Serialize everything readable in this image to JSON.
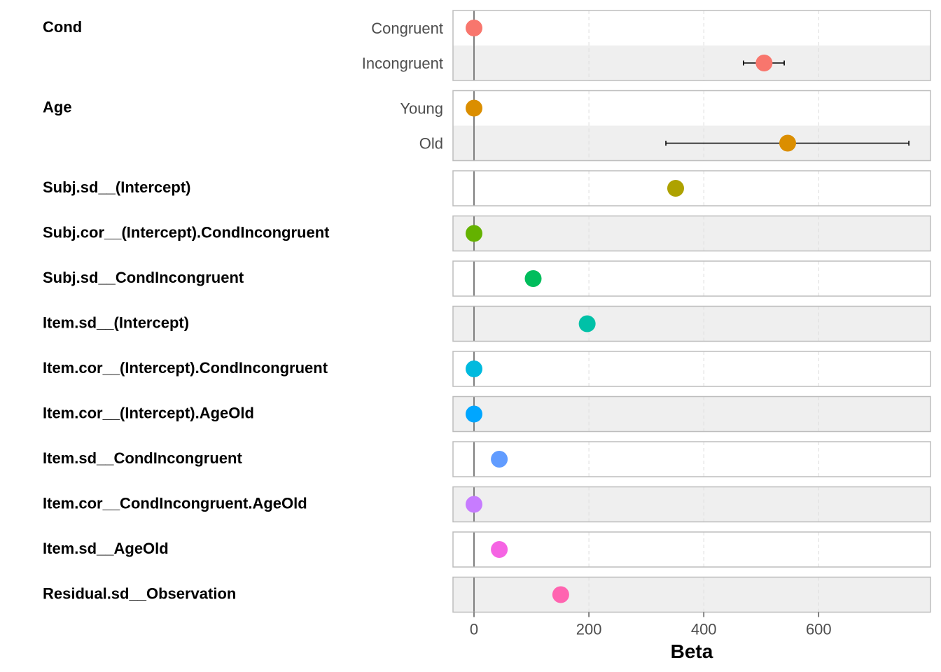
{
  "chart_data": {
    "type": "scatter",
    "title": "",
    "xlabel": "Beta",
    "ylabel": "",
    "xlim": [
      -37,
      790
    ],
    "x_ticks": [
      0,
      200,
      400,
      600
    ],
    "x_tick_labels": [
      "0",
      "200",
      "400",
      "600"
    ],
    "grid": {
      "major_x": true,
      "minor_x": false,
      "style": "dashed"
    },
    "zero_line": true,
    "legend": "none",
    "facets": [
      {
        "name": "Cond",
        "levels": [
          {
            "label": "Congruent",
            "value": 0,
            "color": "#F8766D"
          },
          {
            "label": "Incongruent",
            "value": 505,
            "lower": 469,
            "upper": 540,
            "color": "#F8766D"
          }
        ]
      },
      {
        "name": "Age",
        "levels": [
          {
            "label": "Young",
            "value": 0,
            "color": "#DB8E00"
          },
          {
            "label": "Old",
            "value": 546,
            "lower": 334,
            "upper": 757,
            "color": "#DB8E00"
          }
        ]
      },
      {
        "name": "Subj.sd__(Intercept)",
        "levels": [
          {
            "label": "",
            "value": 351,
            "color": "#AEA200"
          }
        ]
      },
      {
        "name": "Subj.cor__(Intercept).CondIncongruent",
        "levels": [
          {
            "label": "",
            "value": 0,
            "color": "#64B200"
          }
        ]
      },
      {
        "name": "Subj.sd__CondIncongruent",
        "levels": [
          {
            "label": "",
            "value": 103,
            "color": "#00BD5C"
          }
        ]
      },
      {
        "name": "Item.sd__(Intercept)",
        "levels": [
          {
            "label": "",
            "value": 197,
            "color": "#00C1A7"
          }
        ]
      },
      {
        "name": "Item.cor__(Intercept).CondIncongruent",
        "levels": [
          {
            "label": "",
            "value": 0,
            "color": "#00BADE"
          }
        ]
      },
      {
        "name": "Item.cor__(Intercept).AgeOld",
        "levels": [
          {
            "label": "",
            "value": 0,
            "color": "#00A6FF"
          }
        ]
      },
      {
        "name": "Item.sd__CondIncongruent",
        "levels": [
          {
            "label": "",
            "value": 44,
            "color": "#619CFF"
          }
        ]
      },
      {
        "name": "Item.cor__CondIncongruent.AgeOld",
        "levels": [
          {
            "label": "",
            "value": 0,
            "color": "#C77CFF"
          }
        ]
      },
      {
        "name": "Item.sd__AgeOld",
        "levels": [
          {
            "label": "",
            "value": 44,
            "color": "#F564E3"
          }
        ]
      },
      {
        "name": "Residual.sd__Observation",
        "levels": [
          {
            "label": "",
            "value": 151,
            "color": "#FF64B0"
          }
        ]
      }
    ]
  }
}
